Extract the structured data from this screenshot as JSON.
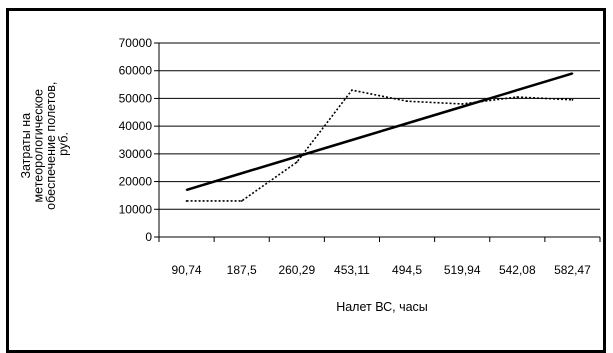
{
  "chart_data": {
    "type": "line",
    "categories": [
      "90,74",
      "187,5",
      "260,29",
      "453,11",
      "494,5",
      "519,94",
      "542,08",
      "582,47"
    ],
    "series": [
      {
        "style": "dotted",
        "values": [
          13000,
          13000,
          27000,
          53000,
          49000,
          48000,
          50500,
          49500
        ]
      },
      {
        "style": "solid-trend",
        "values": [
          17000,
          23000,
          29000,
          35000,
          41000,
          47000,
          53000,
          59000
        ]
      }
    ],
    "xlabel": "Налет ВС, часы",
    "ylabel_lines": [
      "Затраты на",
      "метеорологическое",
      "обеспечение полетов,",
      "руб."
    ],
    "ylim": [
      0,
      70000
    ],
    "yticks": [
      "0",
      "10000",
      "20000",
      "30000",
      "40000",
      "50000",
      "60000",
      "70000"
    ],
    "grid": true,
    "legend": "none"
  }
}
